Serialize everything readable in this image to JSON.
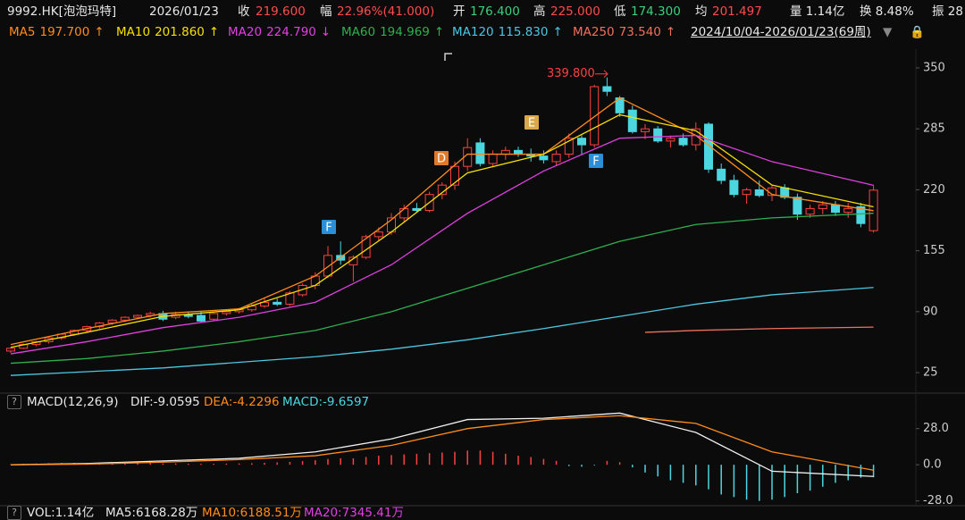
{
  "chart_data": {
    "type": "candlestick",
    "header": {
      "symbol": "9992.HK[泡泡玛特]",
      "date": "2026/01/23",
      "close_label": "收",
      "close": "219.600",
      "change_label": "幅",
      "change": "22.96%(41.000)",
      "open_label": "开",
      "open": "176.400",
      "high_label": "高",
      "high": "225.000",
      "low_label": "低",
      "low": "174.300",
      "avg_label": "均",
      "avg": "201.497",
      "volume": "量 1.14亿",
      "turnover": "换 8.48%",
      "amplitude": "振 28"
    },
    "date_range": "2024/10/04-2026/01/23(69周)",
    "ylim": [
      6,
      370
    ],
    "yticks": [
      25,
      90,
      155,
      220,
      285,
      350
    ],
    "up_color": "#ff4040",
    "down_color": "#4cd6e0",
    "candles": [
      [
        48,
        52,
        46,
        51
      ],
      [
        51,
        56,
        50,
        55
      ],
      [
        55,
        59,
        53,
        58
      ],
      [
        58,
        63,
        56,
        62
      ],
      [
        62,
        67,
        60,
        66
      ],
      [
        66,
        71,
        64,
        70
      ],
      [
        70,
        75,
        68,
        74
      ],
      [
        74,
        79,
        72,
        78
      ],
      [
        78,
        82,
        76,
        81
      ],
      [
        81,
        85,
        79,
        84
      ],
      [
        84,
        87,
        82,
        86
      ],
      [
        86,
        90,
        84,
        88
      ],
      [
        88,
        91,
        80,
        82
      ],
      [
        84,
        90,
        82,
        87
      ],
      [
        87,
        90,
        83,
        85
      ],
      [
        86,
        90,
        78,
        80
      ],
      [
        82,
        89,
        80,
        88
      ],
      [
        88,
        92,
        86,
        90
      ],
      [
        90,
        94,
        88,
        92
      ],
      [
        92,
        98,
        90,
        96
      ],
      [
        96,
        104,
        94,
        100
      ],
      [
        100,
        104,
        96,
        98
      ],
      [
        98,
        112,
        96,
        110
      ],
      [
        108,
        120,
        106,
        118
      ],
      [
        118,
        132,
        114,
        128
      ],
      [
        128,
        160,
        126,
        150
      ],
      [
        150,
        165,
        140,
        145
      ],
      [
        140,
        150,
        122,
        148
      ],
      [
        148,
        172,
        146,
        170
      ],
      [
        170,
        180,
        166,
        175
      ],
      [
        175,
        195,
        172,
        190
      ],
      [
        190,
        204,
        185,
        200
      ],
      [
        200,
        206,
        196,
        198
      ],
      [
        198,
        218,
        196,
        215
      ],
      [
        215,
        228,
        210,
        225
      ],
      [
        225,
        250,
        220,
        245
      ],
      [
        245,
        275,
        240,
        265
      ],
      [
        270,
        275,
        245,
        248
      ],
      [
        248,
        262,
        244,
        258
      ],
      [
        258,
        266,
        252,
        262
      ],
      [
        262,
        266,
        255,
        258
      ],
      [
        258,
        264,
        250,
        256
      ],
      [
        256,
        262,
        248,
        252
      ],
      [
        250,
        262,
        246,
        258
      ],
      [
        258,
        280,
        254,
        275
      ],
      [
        275,
        278,
        258,
        268
      ],
      [
        268,
        332,
        265,
        330
      ],
      [
        330,
        339.8,
        320,
        325
      ],
      [
        318,
        320,
        298,
        302
      ],
      [
        305,
        310,
        280,
        282
      ],
      [
        282,
        290,
        274,
        285
      ],
      [
        285,
        288,
        270,
        272
      ],
      [
        272,
        278,
        265,
        275
      ],
      [
        275,
        280,
        266,
        268
      ],
      [
        268,
        292,
        262,
        285
      ],
      [
        290,
        292,
        238,
        242
      ],
      [
        242,
        248,
        226,
        230
      ],
      [
        230,
        236,
        212,
        215
      ],
      [
        215,
        222,
        205,
        220
      ],
      [
        220,
        230,
        212,
        214
      ],
      [
        214,
        225,
        208,
        222
      ],
      [
        222,
        226,
        210,
        212
      ],
      [
        212,
        216,
        188,
        194
      ],
      [
        194,
        204,
        190,
        200
      ],
      [
        200,
        208,
        194,
        204
      ],
      [
        204,
        208,
        192,
        196
      ],
      [
        196,
        206,
        190,
        200
      ],
      [
        202,
        206,
        180,
        184
      ],
      [
        176.4,
        225,
        174.3,
        219.6
      ]
    ],
    "series": [
      {
        "name": "MA5",
        "legend_value": "197.700",
        "arrow": "↑",
        "color": "#ff8c1a",
        "x": [
          0,
          6,
          12,
          18,
          24,
          30,
          36,
          42,
          48,
          54,
          60,
          68
        ],
        "values": [
          55,
          72,
          88,
          93,
          128,
          188,
          258,
          258,
          318,
          278,
          215,
          197.7
        ]
      },
      {
        "name": "MA10",
        "legend_value": "201.860",
        "arrow": "↑",
        "color": "#f5e000",
        "x": [
          0,
          6,
          12,
          18,
          24,
          30,
          36,
          42,
          48,
          54,
          60,
          68
        ],
        "values": [
          52,
          68,
          85,
          92,
          118,
          175,
          238,
          258,
          300,
          283,
          225,
          201.86
        ]
      },
      {
        "name": "MA20",
        "legend_value": "224.790",
        "arrow": "↓",
        "color": "#e040e0",
        "x": [
          0,
          6,
          12,
          18,
          24,
          30,
          36,
          42,
          48,
          54,
          60,
          68
        ],
        "values": [
          45,
          58,
          73,
          84,
          100,
          140,
          195,
          240,
          275,
          278,
          250,
          224.79
        ]
      },
      {
        "name": "MA60",
        "legend_value": "194.969",
        "arrow": "↑",
        "color": "#2eb04e",
        "x": [
          0,
          6,
          12,
          18,
          24,
          30,
          36,
          42,
          48,
          54,
          60,
          68
        ],
        "values": [
          35,
          40,
          48,
          58,
          70,
          90,
          115,
          140,
          165,
          183,
          190,
          194.969
        ]
      },
      {
        "name": "MA120",
        "legend_value": "115.830",
        "arrow": "↑",
        "color": "#4cc7e0",
        "x": [
          0,
          6,
          12,
          18,
          24,
          30,
          36,
          42,
          48,
          54,
          60,
          68
        ],
        "values": [
          22,
          26,
          30,
          36,
          42,
          50,
          60,
          72,
          85,
          98,
          108,
          115.83
        ]
      },
      {
        "name": "MA250",
        "legend_value": "73.540",
        "arrow": "↑",
        "color": "#f0705a",
        "x": [
          50,
          54,
          60,
          68
        ],
        "values": [
          68,
          70,
          72,
          73.54
        ]
      }
    ],
    "peak_label": "339.800",
    "markers": [
      {
        "label": "F"
      },
      {
        "label": "D"
      },
      {
        "label": "E"
      },
      {
        "label": "F"
      }
    ],
    "macd": {
      "title": "MACD(12,26,9)",
      "dif_label": "DIF:-9.0595",
      "dea_label": "DEA:-4.2296",
      "macd_label": "MACD:-9.6597",
      "ylim": [
        -31,
        43
      ],
      "yticks": [
        {
          "value": 28,
          "label": "28.0"
        },
        {
          "value": 0,
          "label": "0.0"
        },
        {
          "value": -28,
          "label": "-28.0"
        }
      ],
      "histogram": [
        0.5,
        0.8,
        1,
        1.2,
        1.4,
        1.5,
        1.5,
        1.6,
        1.6,
        1.5,
        1.4,
        1.3,
        1,
        1,
        0.8,
        0.8,
        0.8,
        0.9,
        1,
        1.2,
        1.5,
        1.8,
        2.2,
        2.8,
        3.5,
        4.5,
        5,
        5,
        6,
        7,
        7.5,
        8,
        8.5,
        9,
        9.5,
        10,
        11,
        11,
        10,
        8.5,
        7,
        6,
        4.5,
        3,
        -1,
        -1.5,
        -0.5,
        3,
        2,
        -2,
        -6,
        -9,
        -12,
        -14,
        -16,
        -19,
        -23,
        -25,
        -27,
        -28,
        -27,
        -25,
        -22,
        -20,
        -17,
        -14,
        -12,
        -10,
        -9.6597
      ],
      "x": [
        0,
        6,
        12,
        18,
        24,
        30,
        36,
        42,
        48,
        54,
        60,
        68
      ],
      "dif": [
        0,
        1,
        3,
        5,
        10,
        20,
        35,
        36,
        40,
        25,
        -5,
        -9.0595
      ],
      "dea": [
        0,
        0.5,
        2,
        4,
        7,
        15,
        28,
        35,
        38,
        32,
        10,
        -4.2296
      ],
      "dif_color": "#f0f0f0",
      "dea_color": "#ff8c1a"
    },
    "volume": {
      "vol_label": "VOL:1.14亿",
      "ma5_label": "MA5:6168.28万",
      "ma10_label": "MA10:6188.51万",
      "ma20_label": "MA20:7345.41万"
    }
  }
}
